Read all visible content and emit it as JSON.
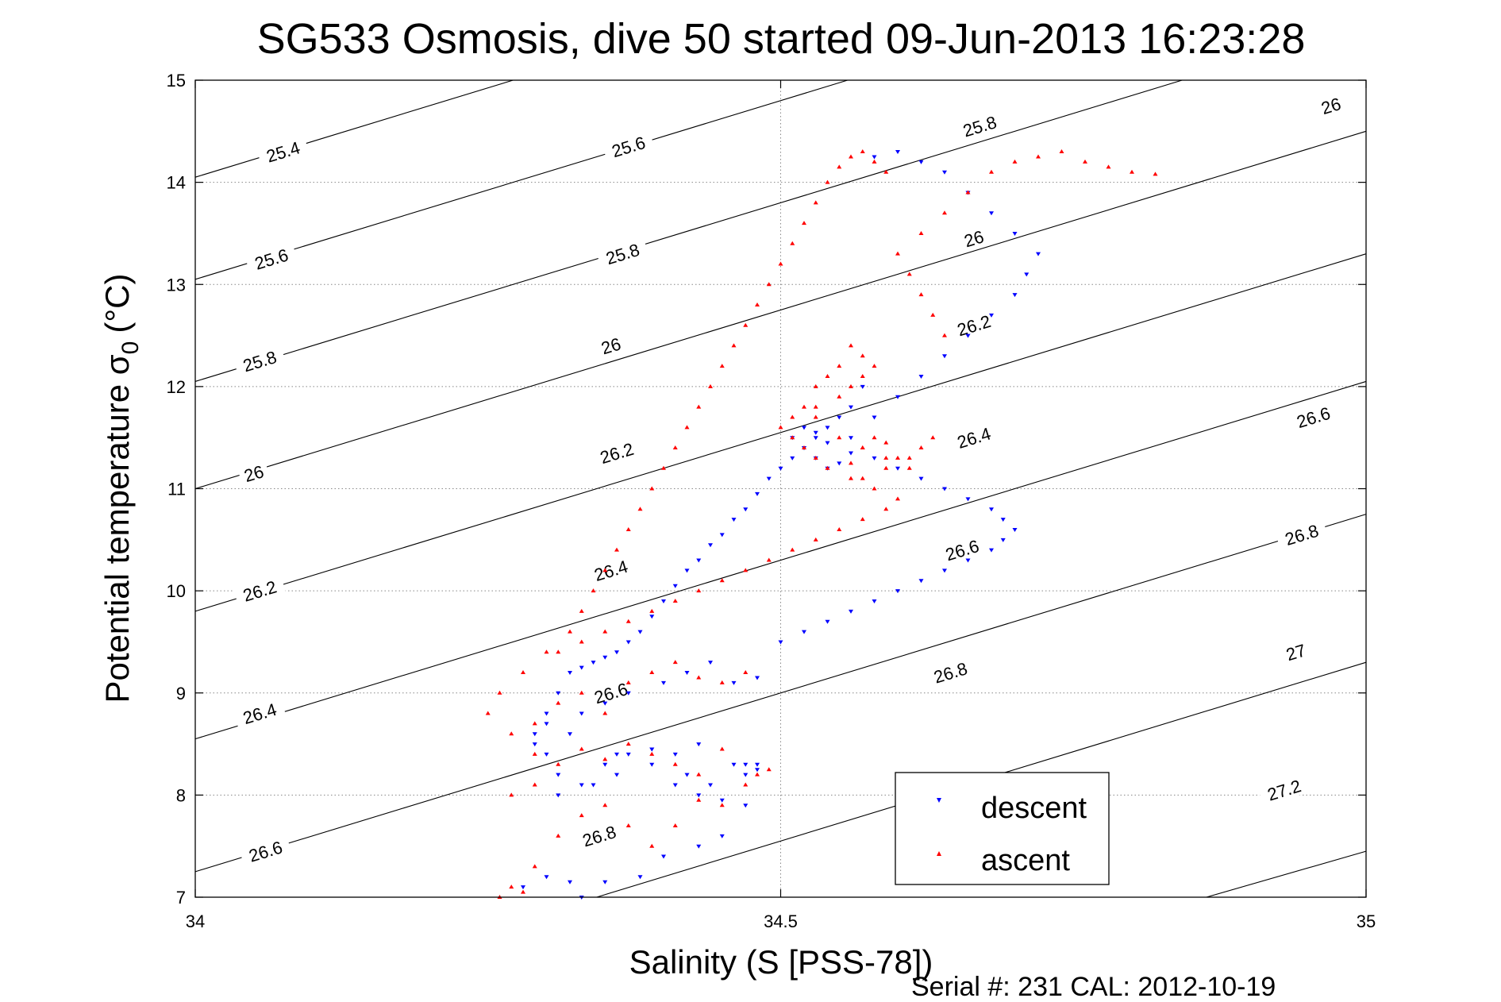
{
  "chart_data": {
    "type": "scatter",
    "title": "SG533 Osmosis, dive 50 started 09-Jun-2013 16:23:28",
    "xlabel": "Salinity (S [PSS-78])",
    "ylabel": "Potential temperature σ",
    "ylabel_subscript": "0",
    "ylabel_unit": "(°C)",
    "footer": "Serial #: 231  CAL: 2012-10-19",
    "xlim": [
      34,
      35
    ],
    "ylim": [
      7,
      15
    ],
    "xticks": [
      34,
      34.5,
      35
    ],
    "yticks": [
      7,
      8,
      9,
      10,
      11,
      12,
      13,
      14,
      15
    ],
    "grid": true,
    "legend_position": "bottom-right",
    "legend_entries": [
      "descent",
      "ascent"
    ],
    "density_contours": [
      {
        "level": "25.4",
        "intercept": 14.05,
        "slope": 3.5
      },
      {
        "level": "25.6",
        "intercept": 13.05,
        "slope": 3.5
      },
      {
        "level": "25.8",
        "intercept": 12.05,
        "slope": 3.5
      },
      {
        "level": "26",
        "intercept": 11.0,
        "slope": 3.5
      },
      {
        "level": "26.2",
        "intercept": 9.8,
        "slope": 3.5
      },
      {
        "level": "26.4",
        "intercept": 8.55,
        "slope": 3.5
      },
      {
        "level": "26.6",
        "intercept": 7.25,
        "slope": 3.5
      },
      {
        "level": "26.8",
        "intercept": 5.8,
        "slope": 3.5
      },
      {
        "level": "27",
        "intercept": 4.15,
        "slope": 3.3
      },
      {
        "level": "27.2",
        "intercept": 2.15,
        "slope": 3.1
      }
    ],
    "contour_labels": [
      {
        "text": "25.4",
        "x": 34.075,
        "y": 14.3
      },
      {
        "text": "25.6",
        "x": 34.37,
        "y": 14.35
      },
      {
        "text": "25.8",
        "x": 34.67,
        "y": 14.55
      },
      {
        "text": "26",
        "x": 34.97,
        "y": 14.75
      },
      {
        "text": "25.6",
        "x": 34.065,
        "y": 13.25
      },
      {
        "text": "25.8",
        "x": 34.365,
        "y": 13.3
      },
      {
        "text": "26",
        "x": 34.665,
        "y": 13.45
      },
      {
        "text": "25.8",
        "x": 34.055,
        "y": 12.25
      },
      {
        "text": "26",
        "x": 34.355,
        "y": 12.4
      },
      {
        "text": "26.2",
        "x": 34.665,
        "y": 12.6
      },
      {
        "text": "26",
        "x": 34.05,
        "y": 11.15
      },
      {
        "text": "26.2",
        "x": 34.36,
        "y": 11.35
      },
      {
        "text": "26.4",
        "x": 34.665,
        "y": 11.5
      },
      {
        "text": "26.6",
        "x": 34.955,
        "y": 11.7
      },
      {
        "text": "26.2",
        "x": 34.055,
        "y": 10.0
      },
      {
        "text": "26.4",
        "x": 34.355,
        "y": 10.2
      },
      {
        "text": "26.6",
        "x": 34.655,
        "y": 10.4
      },
      {
        "text": "26.8",
        "x": 34.945,
        "y": 10.55
      },
      {
        "text": "26.4",
        "x": 34.055,
        "y": 8.8
      },
      {
        "text": "26.6",
        "x": 34.355,
        "y": 9.0
      },
      {
        "text": "26.8",
        "x": 34.645,
        "y": 9.2
      },
      {
        "text": "27",
        "x": 34.94,
        "y": 9.4
      },
      {
        "text": "26.6",
        "x": 34.06,
        "y": 7.45
      },
      {
        "text": "26.8",
        "x": 34.345,
        "y": 7.6
      },
      {
        "text": "27.2",
        "x": 34.93,
        "y": 8.05
      }
    ],
    "series": [
      {
        "name": "descent",
        "color": "#0000ff",
        "marker": "triangle-down",
        "x": [
          34.33,
          34.28,
          34.3,
          34.32,
          34.35,
          34.38,
          34.4,
          34.43,
          34.45,
          34.47,
          34.31,
          34.34,
          34.36,
          34.39,
          34.42,
          34.44,
          34.46,
          34.48,
          34.29,
          34.32,
          34.36,
          34.39,
          34.41,
          34.43,
          34.47,
          34.3,
          34.33,
          34.35,
          34.37,
          34.4,
          34.42,
          34.44,
          34.46,
          34.48,
          34.5,
          34.52,
          34.54,
          34.56,
          34.58,
          34.6,
          34.62,
          34.64,
          34.66,
          34.68,
          34.69,
          34.7,
          34.69,
          34.68,
          34.66,
          34.64,
          34.62,
          34.6,
          34.58,
          34.56,
          34.55,
          34.54,
          34.53,
          34.52,
          34.51,
          34.52,
          34.53,
          34.54,
          34.56,
          34.58,
          34.6,
          34.62,
          34.64,
          34.66,
          34.68,
          34.7,
          34.71,
          34.72,
          34.7,
          34.68,
          34.66,
          34.64,
          34.62,
          34.6,
          34.58,
          34.57,
          34.56,
          34.55,
          34.54,
          34.53,
          34.52,
          34.51,
          34.5,
          34.49,
          34.48,
          34.47,
          34.46,
          34.45,
          34.44,
          34.43,
          34.42,
          34.41,
          34.4,
          34.39,
          34.38,
          34.37,
          34.36,
          34.35,
          34.34,
          34.33,
          34.32,
          34.31,
          34.3,
          34.29,
          34.3,
          34.31,
          34.33,
          34.35,
          34.37,
          34.39,
          34.41,
          34.43,
          34.45,
          34.47,
          34.48
        ],
        "y": [
          7.0,
          7.1,
          7.2,
          7.15,
          7.15,
          7.2,
          7.4,
          7.5,
          7.6,
          7.9,
          8.0,
          8.1,
          8.2,
          8.3,
          8.2,
          8.1,
          8.3,
          8.25,
          8.5,
          8.6,
          8.4,
          8.45,
          8.4,
          8.5,
          8.3,
          8.7,
          8.8,
          8.9,
          9.0,
          9.1,
          9.2,
          9.3,
          9.1,
          9.15,
          9.5,
          9.6,
          9.7,
          9.8,
          9.9,
          10.0,
          10.1,
          10.2,
          10.3,
          10.4,
          10.5,
          10.6,
          10.7,
          10.8,
          10.9,
          11.0,
          11.1,
          11.2,
          11.3,
          11.35,
          11.25,
          11.2,
          11.3,
          11.4,
          11.5,
          11.6,
          11.55,
          11.45,
          11.5,
          11.7,
          11.9,
          12.1,
          12.3,
          12.5,
          12.7,
          12.9,
          13.1,
          13.3,
          13.5,
          13.7,
          13.9,
          14.1,
          14.2,
          14.3,
          14.25,
          12.0,
          11.8,
          11.7,
          11.6,
          11.5,
          11.4,
          11.3,
          11.2,
          11.1,
          10.95,
          10.8,
          10.7,
          10.55,
          10.45,
          10.3,
          10.2,
          10.05,
          9.9,
          9.75,
          9.6,
          9.5,
          9.4,
          9.35,
          9.3,
          9.25,
          9.2,
          9.0,
          8.8,
          8.6,
          8.4,
          8.2,
          8.1,
          8.3,
          8.4,
          8.45,
          8.1,
          8.0,
          7.95,
          8.2,
          8.3
        ],
        "y_override_note": ""
      },
      {
        "name": "ascent",
        "color": "#ff0000",
        "marker": "triangle-up",
        "x": [
          34.28,
          34.26,
          34.27,
          34.29,
          34.31,
          34.33,
          34.35,
          34.37,
          34.39,
          34.41,
          34.43,
          34.45,
          34.47,
          34.48,
          34.49,
          34.27,
          34.29,
          34.31,
          34.33,
          34.35,
          34.37,
          34.39,
          34.41,
          34.43,
          34.45,
          34.29,
          34.31,
          34.33,
          34.35,
          34.37,
          34.39,
          34.41,
          34.43,
          34.45,
          34.47,
          34.31,
          34.33,
          34.35,
          34.37,
          34.39,
          34.41,
          34.43,
          34.45,
          34.47,
          34.49,
          34.51,
          34.53,
          34.55,
          34.57,
          34.59,
          34.6,
          34.58,
          34.56,
          34.54,
          34.53,
          34.52,
          34.51,
          34.5,
          34.51,
          34.53,
          34.55,
          34.56,
          34.57,
          34.58,
          34.57,
          34.56,
          34.55,
          34.54,
          34.53,
          34.52,
          34.53,
          34.55,
          34.57,
          34.59,
          34.61,
          34.6,
          34.59,
          34.58,
          34.57,
          34.56,
          34.57,
          34.59,
          34.61,
          34.62,
          34.63,
          34.64,
          34.63,
          34.62,
          34.61,
          34.6,
          34.62,
          34.64,
          34.66,
          34.68,
          34.7,
          34.72,
          34.74,
          34.76,
          34.78,
          34.8,
          34.82,
          34.59,
          34.58,
          34.57,
          34.56,
          34.55,
          34.54,
          34.53,
          34.52,
          34.51,
          34.5,
          34.49,
          34.48,
          34.47,
          34.46,
          34.45,
          34.44,
          34.43,
          34.42,
          34.41,
          34.4,
          34.39,
          34.38,
          34.37,
          34.36,
          34.35,
          34.34,
          34.33,
          34.32,
          34.3,
          34.28,
          34.26,
          34.25,
          34.27,
          34.29
        ],
        "y": [
          7.05,
          7.0,
          7.1,
          7.3,
          7.6,
          7.8,
          7.9,
          7.7,
          7.5,
          7.7,
          7.95,
          7.9,
          8.1,
          8.2,
          8.25,
          8.0,
          8.1,
          8.3,
          8.45,
          8.35,
          8.5,
          8.4,
          8.3,
          8.2,
          8.45,
          8.7,
          8.9,
          9.0,
          8.8,
          9.1,
          9.2,
          9.3,
          9.15,
          9.1,
          9.2,
          9.4,
          9.5,
          9.6,
          9.7,
          9.8,
          9.9,
          10.0,
          10.1,
          10.2,
          10.3,
          10.4,
          10.5,
          10.6,
          10.7,
          10.8,
          10.9,
          11.0,
          11.1,
          11.2,
          11.3,
          11.4,
          11.5,
          11.6,
          11.7,
          11.8,
          11.9,
          12.0,
          12.1,
          12.2,
          12.3,
          12.4,
          12.2,
          12.1,
          12.0,
          11.8,
          11.7,
          11.5,
          11.4,
          11.3,
          11.2,
          11.3,
          11.45,
          11.5,
          11.4,
          11.25,
          11.1,
          11.2,
          11.3,
          11.4,
          11.5,
          12.5,
          12.7,
          12.9,
          13.1,
          13.3,
          13.5,
          13.7,
          13.9,
          14.1,
          14.2,
          14.25,
          14.3,
          14.2,
          14.15,
          14.1,
          14.08,
          14.1,
          14.2,
          14.3,
          14.25,
          14.15,
          14.0,
          13.8,
          13.6,
          13.4,
          13.2,
          13.0,
          12.8,
          12.6,
          12.4,
          12.2,
          12.0,
          11.8,
          11.6,
          11.4,
          11.2,
          11.0,
          10.8,
          10.6,
          10.4,
          10.2,
          10.0,
          9.8,
          9.6,
          9.4,
          9.2,
          9.0,
          8.8,
          8.6,
          8.4
        ]
      }
    ]
  }
}
